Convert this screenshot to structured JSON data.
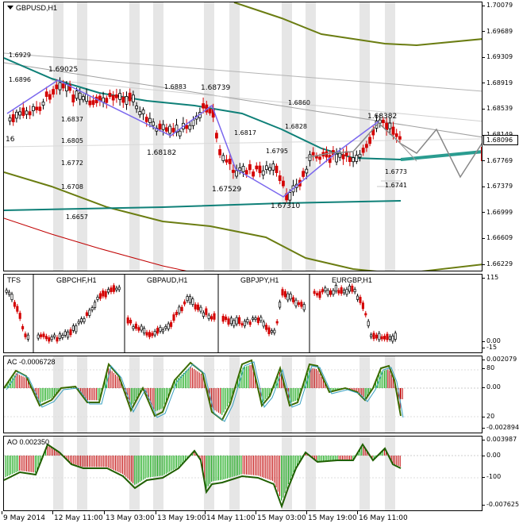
{
  "main": {
    "title": "GBPUSD,H1",
    "current_price": "1.68096",
    "left_edge_label": "16",
    "price_ticks": [
      "1.70079",
      "1.69689",
      "1.69309",
      "1.68919",
      "1.68539",
      "1.68149",
      "1.67769",
      "1.67379",
      "1.66999",
      "1.66609",
      "1.66229"
    ],
    "annotations": [
      {
        "text": "1.6929",
        "cls": ""
      },
      {
        "text": "1.6896",
        "cls": ""
      },
      {
        "text": "1.69025",
        "cls": "big"
      },
      {
        "text": "1.6837",
        "cls": ""
      },
      {
        "text": "1.6805",
        "cls": ""
      },
      {
        "text": "1.6772",
        "cls": ""
      },
      {
        "text": "1.6708",
        "cls": ""
      },
      {
        "text": "1.6657",
        "cls": ""
      },
      {
        "text": "1.6883",
        "cls": ""
      },
      {
        "text": "1.68739",
        "cls": "big"
      },
      {
        "text": "1.68182",
        "cls": "big"
      },
      {
        "text": "1.6860",
        "cls": ""
      },
      {
        "text": "1.6828",
        "cls": ""
      },
      {
        "text": "1.6817",
        "cls": ""
      },
      {
        "text": "1.6795",
        "cls": ""
      },
      {
        "text": "1.67529",
        "cls": "big"
      },
      {
        "text": "1.67310",
        "cls": "big"
      },
      {
        "text": "1.68382",
        "cls": "big"
      },
      {
        "text": "1.6773",
        "cls": ""
      },
      {
        "text": "1.6741",
        "cls": ""
      }
    ],
    "colors": {
      "bull": "#000000",
      "bear": "#d40000",
      "zigzag": "#7b68ee",
      "ma_teal": "#0f8078",
      "channel_olive": "#6b7d12",
      "lower_red": "#c00000"
    }
  },
  "tfs": {
    "name": "TFS",
    "symbols": [
      "GBPCHF,H1",
      "GBPAUD,H1",
      "GBPJPY,H1",
      "EURGBP,H1"
    ],
    "ticks": [
      "115",
      "0.00",
      "-15"
    ]
  },
  "ac": {
    "label": "AC -0.0006728",
    "ticks": [
      "0.002079",
      "80",
      "0.00",
      "20",
      "-0.002894"
    ]
  },
  "ao": {
    "label": "AO 0.002350",
    "ticks": [
      "0.003987",
      "0.00",
      "-100",
      "-0.007625"
    ]
  },
  "time_axis": [
    "9 May 2014",
    "12 May 11:00",
    "13 May 03:00",
    "13 May 19:00",
    "14 May 11:00",
    "15 May 03:00",
    "15 May 19:00",
    "16 May 11:00"
  ]
}
